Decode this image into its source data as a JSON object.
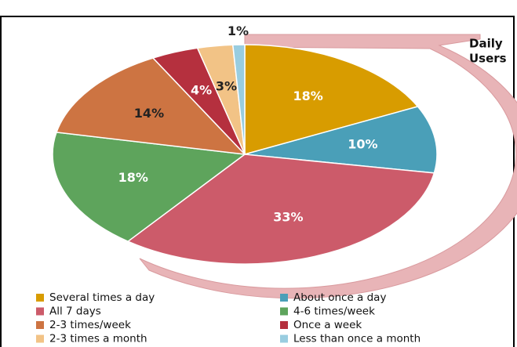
{
  "chart_data": {
    "type": "pie",
    "categories": [
      "Several times a day",
      "About once a day",
      "All 7 days",
      "4-6 times/week",
      "2-3 times/week",
      "Once a week",
      "2-3 times a month",
      "Less than once a month"
    ],
    "values": [
      18,
      10,
      33,
      18,
      14,
      4,
      3,
      1
    ],
    "value_labels": [
      "18%",
      "10%",
      "33%",
      "18%",
      "14%",
      "4%",
      "3%",
      "1%"
    ],
    "colors": [
      "#d89c00",
      "#4a9fb8",
      "#cc5b6a",
      "#5ea45c",
      "#cd7442",
      "#b5303e",
      "#f2c386",
      "#99cde0"
    ],
    "label_colors": [
      "#ffffff",
      "#ffffff",
      "#ffffff",
      "#ffffff",
      "#222222",
      "#ffffff",
      "#222222",
      "#222222"
    ],
    "annotation": [
      "Daily",
      "Users"
    ]
  }
}
